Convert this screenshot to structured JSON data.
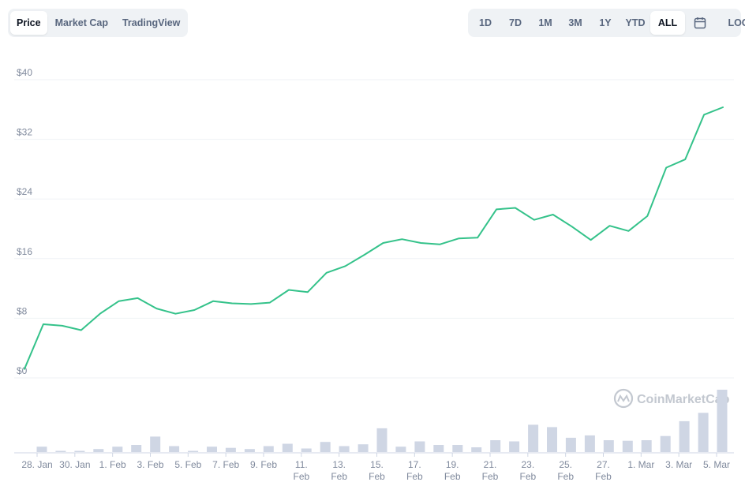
{
  "tabs": {
    "price": "Price",
    "market_cap": "Market Cap",
    "tradingview": "TradingView"
  },
  "ranges": {
    "d1": "1D",
    "d7": "7D",
    "m1": "1M",
    "m3": "3M",
    "y1": "1Y",
    "ytd": "YTD",
    "all": "ALL",
    "log": "LOG",
    "calendar_icon": "calendar-icon"
  },
  "watermark": "CoinMarketCap",
  "colors": {
    "line": "#34c28a",
    "volume": "#cfd6e4",
    "grid": "#eff2f5"
  },
  "chart_data": {
    "type": "line",
    "yticks": [
      "$0",
      "$8",
      "$16",
      "$24",
      "$32",
      "$40"
    ],
    "ylim": [
      0,
      40
    ],
    "xticks": [
      {
        "l1": "28. Jan",
        "l2": ""
      },
      {
        "l1": "30. Jan",
        "l2": ""
      },
      {
        "l1": "1. Feb",
        "l2": ""
      },
      {
        "l1": "3. Feb",
        "l2": ""
      },
      {
        "l1": "5. Feb",
        "l2": ""
      },
      {
        "l1": "7. Feb",
        "l2": ""
      },
      {
        "l1": "9. Feb",
        "l2": ""
      },
      {
        "l1": "11.",
        "l2": "Feb"
      },
      {
        "l1": "13.",
        "l2": "Feb"
      },
      {
        "l1": "15.",
        "l2": "Feb"
      },
      {
        "l1": "17.",
        "l2": "Feb"
      },
      {
        "l1": "19.",
        "l2": "Feb"
      },
      {
        "l1": "21.",
        "l2": "Feb"
      },
      {
        "l1": "23.",
        "l2": "Feb"
      },
      {
        "l1": "25.",
        "l2": "Feb"
      },
      {
        "l1": "27.",
        "l2": "Feb"
      },
      {
        "l1": "1. Mar",
        "l2": ""
      },
      {
        "l1": "3. Mar",
        "l2": ""
      },
      {
        "l1": "5. Mar",
        "l2": ""
      }
    ],
    "grid": true,
    "series": [
      {
        "values": [
          1.2,
          7.2,
          7.0,
          6.4,
          8.6,
          10.3,
          10.7,
          9.3,
          8.6,
          9.1,
          10.3,
          10.0,
          9.9,
          10.1,
          11.8,
          11.5,
          14.1,
          15.0,
          16.5,
          18.1,
          18.6,
          18.1,
          17.9,
          18.7,
          18.8,
          22.6,
          22.8,
          21.2,
          21.9,
          20.3,
          18.5,
          20.4,
          19.7,
          21.7,
          28.2,
          29.3,
          35.3,
          36.3
        ]
      }
    ],
    "volume": [
      0.9,
      0.2,
      0.2,
      0.5,
      0.9,
      1.2,
      2.6,
      1.0,
      0.2,
      0.9,
      0.7,
      0.5,
      1.0,
      1.4,
      0.6,
      1.7,
      1.0,
      1.3,
      4.0,
      0.9,
      1.8,
      1.2,
      1.2,
      0.8,
      2.0,
      1.8,
      4.6,
      4.2,
      2.4,
      2.8,
      2.0,
      1.9,
      2.0,
      2.7,
      5.2,
      6.6,
      10.5
    ]
  }
}
